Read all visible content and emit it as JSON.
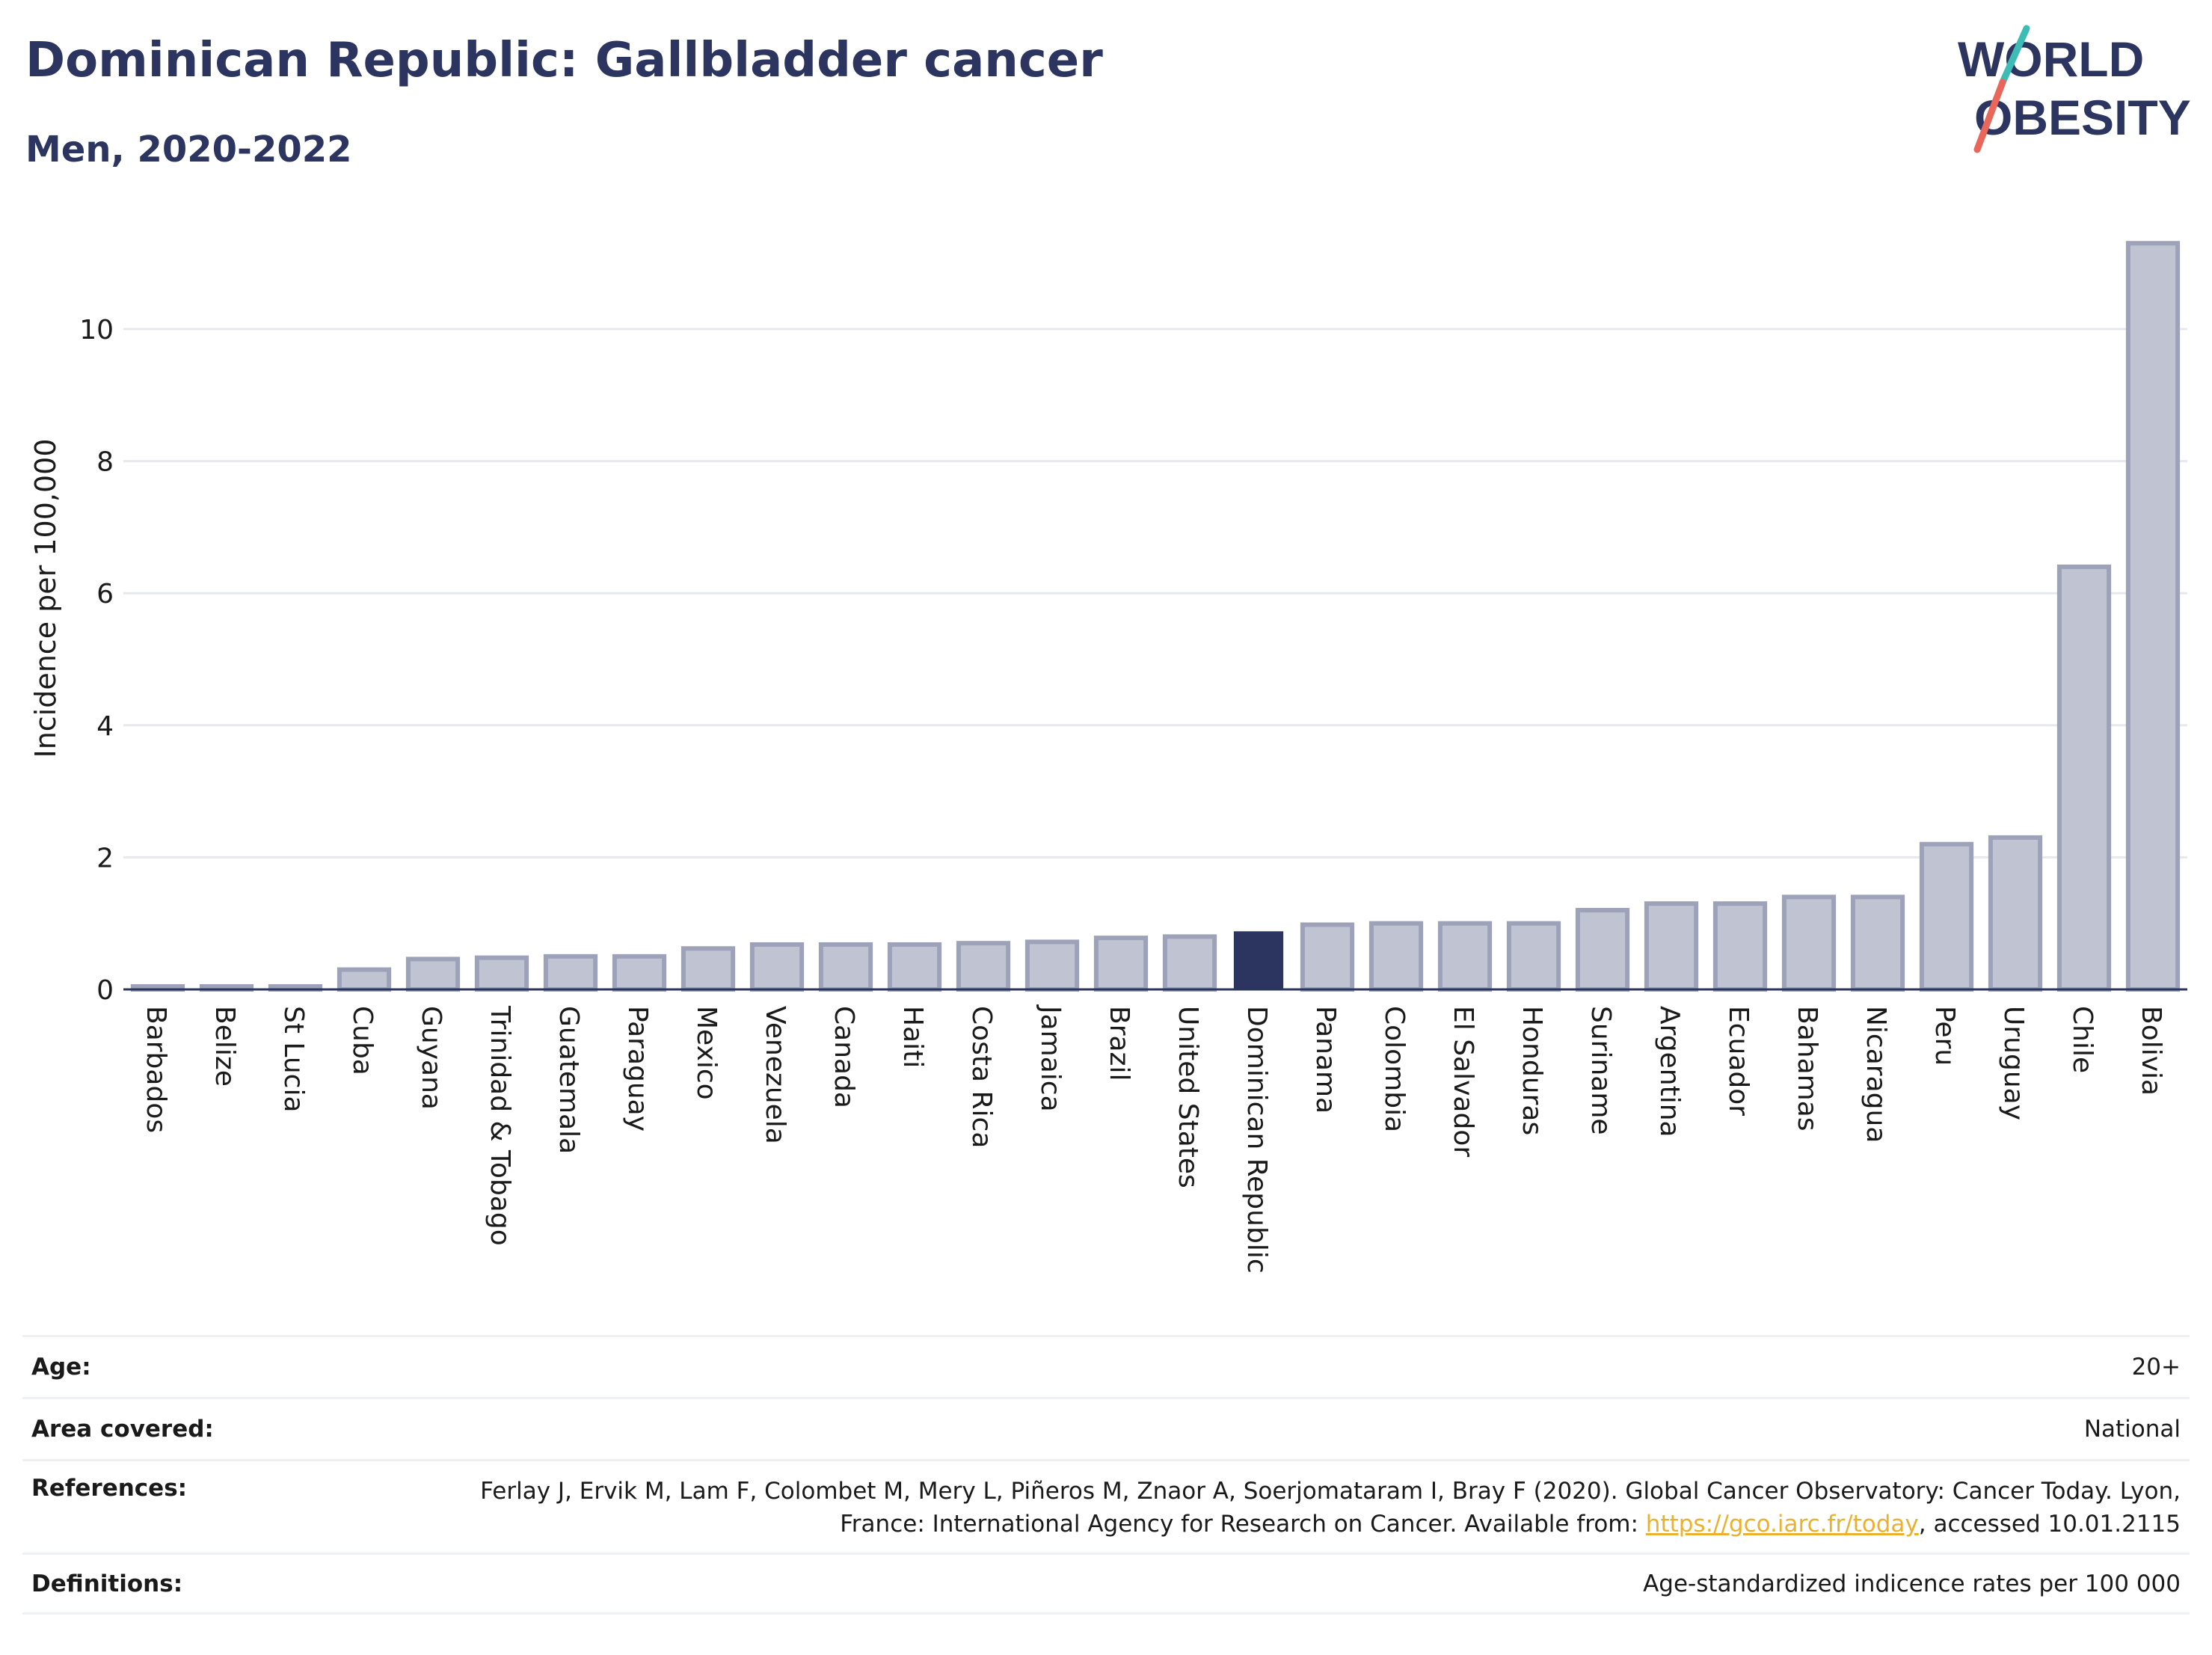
{
  "header": {
    "title": "Dominican Republic: Gallbladder cancer",
    "subtitle": "Men, 2020-2022"
  },
  "logo": {
    "line1": "WORLD",
    "line2": "OBESITY"
  },
  "colors": {
    "highlight": "#2b3560",
    "bar_fill": "#c0c3d1",
    "bar_stroke": "#9ea2b9",
    "text": "#2b3560"
  },
  "chart_data": {
    "type": "bar",
    "ylabel": "Incidence per 100,000",
    "xlabel": "",
    "ylim": [
      0,
      11.5
    ],
    "yticks": [
      0,
      2,
      4,
      6,
      8,
      10
    ],
    "grid": true,
    "highlight": "Dominican Republic",
    "categories": [
      "Barbados",
      "Belize",
      "St Lucia",
      "Cuba",
      "Guyana",
      "Trinidad & Tobago",
      "Guatemala",
      "Paraguay",
      "Mexico",
      "Venezuela",
      "Canada",
      "Haiti",
      "Costa Rica",
      "Jamaica",
      "Brazil",
      "United States",
      "Dominican Republic",
      "Panama",
      "Colombia",
      "El Salvador",
      "Honduras",
      "Suriname",
      "Argentina",
      "Ecuador",
      "Bahamas",
      "Nicaragua",
      "Peru",
      "Uruguay",
      "Chile",
      "Bolivia"
    ],
    "values": [
      0.04,
      0.04,
      0.04,
      0.3,
      0.46,
      0.48,
      0.5,
      0.5,
      0.62,
      0.68,
      0.68,
      0.68,
      0.7,
      0.72,
      0.78,
      0.8,
      0.88,
      0.98,
      1.0,
      1.0,
      1.0,
      1.2,
      1.3,
      1.3,
      1.4,
      1.4,
      2.2,
      2.3,
      6.4,
      11.3
    ]
  },
  "footer": {
    "age_label": "Age:",
    "age_value": "20+",
    "area_label": "Area covered:",
    "area_value": "National",
    "references_label": "References:",
    "references_text": "Ferlay J, Ervik M, Lam F, Colombet M, Mery L, Piñeros M, Znaor A, Soerjomataram I, Bray F (2020). Global Cancer Observatory: Cancer Today. Lyon, France: International Agency for Research on Cancer. Available from:",
    "references_link": "https://gco.iarc.fr/today",
    "references_suffix": ", accessed 10.01.2115",
    "definitions_label": "Definitions:",
    "definitions_value": "Age-standardized indicence rates per 100 000"
  }
}
